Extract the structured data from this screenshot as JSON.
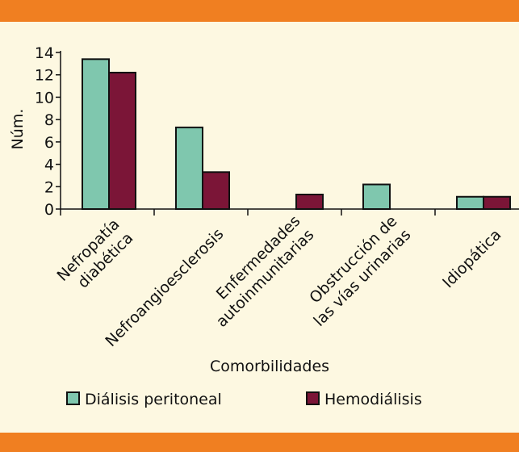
{
  "chart_data": {
    "type": "bar",
    "title": "",
    "xlabel": "Comorbilidades",
    "ylabel": "Núm.",
    "ylim": [
      0,
      14
    ],
    "yticks": [
      0,
      2,
      4,
      6,
      8,
      10,
      12,
      14
    ],
    "grid": false,
    "legend_position": "bottom",
    "categories": [
      [
        "Nefropatía",
        "diabética"
      ],
      [
        "Nefroangioesclerosis"
      ],
      [
        "Enfermedades",
        "autoinmunitarias"
      ],
      [
        "Obstrucción de",
        "las vías urinarias"
      ],
      [
        "Idiopática"
      ]
    ],
    "series": [
      {
        "name": "Diálisis peritoneal",
        "color": "#7fc7ae",
        "values": [
          13.4,
          7.3,
          0,
          2.2,
          1.1
        ]
      },
      {
        "name": "Hemodiálisis",
        "color": "#7b1537",
        "values": [
          12.2,
          3.3,
          1.3,
          0,
          1.1
        ]
      }
    ]
  },
  "colors": {
    "band": "#f07f21",
    "background": "#fdf8e1",
    "axis": "#111111"
  }
}
